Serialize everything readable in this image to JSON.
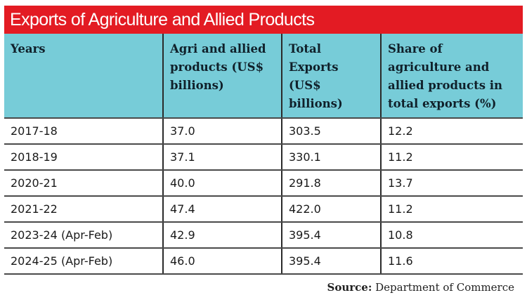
{
  "title": "Exports of Agriculture and Allied Products",
  "colors": {
    "title_bg": "#e31b23",
    "header_bg": "#77ccd8"
  },
  "table": {
    "headers": [
      "Years",
      "Agri and allied products (US$ billions)",
      "Total Exports (US$ billions)",
      "Share of agriculture and allied products in total exports (%)"
    ],
    "rows": [
      [
        "2017-18",
        "37.0",
        "303.5",
        "12.2"
      ],
      [
        "2018-19",
        "37.1",
        "330.1",
        "11.2"
      ],
      [
        "2020-21",
        "40.0",
        "291.8",
        "13.7"
      ],
      [
        "2021-22",
        "47.4",
        "422.0",
        "11.2"
      ],
      [
        "2023-24 (Apr-Feb)",
        "42.9",
        "395.4",
        "10.8"
      ],
      [
        "2024-25 (Apr-Feb)",
        "46.0",
        "395.4",
        "11.6"
      ]
    ]
  },
  "source": {
    "label": "Source:",
    "text": "Department of Commerce"
  }
}
